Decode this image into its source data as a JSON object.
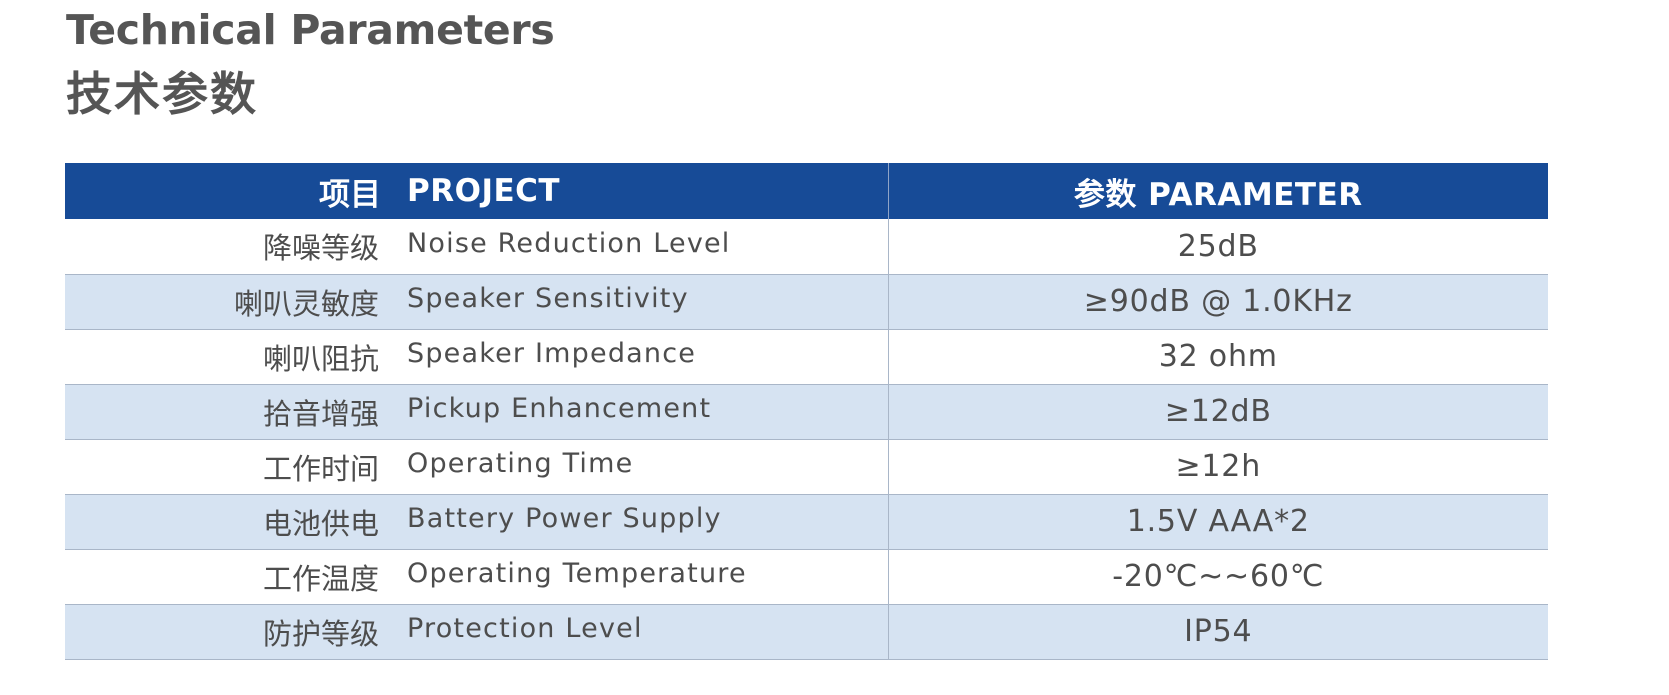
{
  "heading": {
    "title_en": "Technical Parameters",
    "title_cn": "技术参数"
  },
  "table": {
    "header": {
      "project_cn": "项目",
      "project_en": "PROJECT",
      "parameter": "参数  PARAMETER"
    },
    "rows": [
      {
        "cn": "降噪等级",
        "en": "Noise Reduction Level",
        "value": "25dB"
      },
      {
        "cn": "喇叭灵敏度",
        "en": "Speaker Sensitivity",
        "value": "≥90dB @ 1.0KHz"
      },
      {
        "cn": "喇叭阻抗",
        "en": "Speaker Impedance",
        "value": "32 ohm"
      },
      {
        "cn": "拾音增强",
        "en": "Pickup Enhancement",
        "value": "≥12dB"
      },
      {
        "cn": "工作时间",
        "en": "Operating Time",
        "value": "≥12h"
      },
      {
        "cn": "电池供电",
        "en": "Battery Power Supply",
        "value": "1.5V AAA*2"
      },
      {
        "cn": "工作温度",
        "en": "Operating Temperature",
        "value": "-20℃~~60℃"
      },
      {
        "cn": "防护等级",
        "en": "Protection Level",
        "value": "IP54"
      }
    ]
  }
}
